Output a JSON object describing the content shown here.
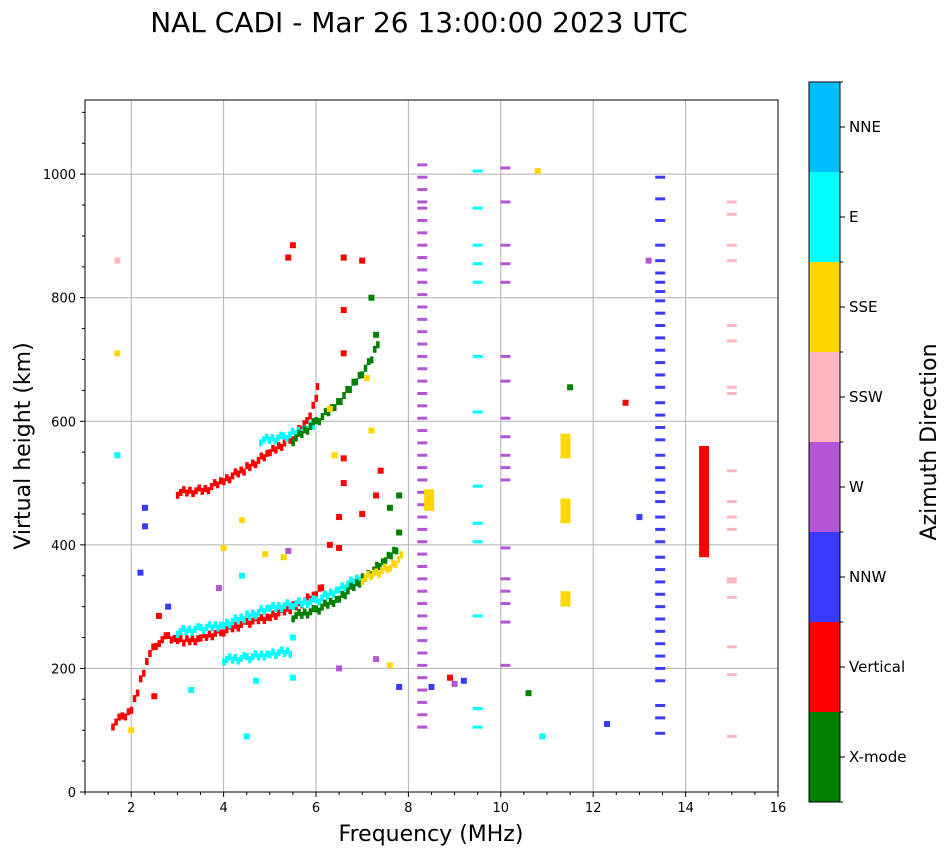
{
  "chart_data": {
    "type": "scatter",
    "title": "NAL CADI - Mar 26 13:00:00 2023 UTC",
    "xlabel": "Frequency (MHz)",
    "ylabel": "Virtual height (km)",
    "xlim": [
      1,
      16
    ],
    "ylim": [
      0,
      1120
    ],
    "xticks": [
      2,
      4,
      6,
      8,
      10,
      12,
      14,
      16
    ],
    "yticks": [
      0,
      200,
      400,
      600,
      800,
      1000
    ],
    "grid": true,
    "colorbar": {
      "label": "Azimuth Direction",
      "categories": [
        {
          "name": "X-mode",
          "color": "#008000"
        },
        {
          "name": "Vertical",
          "color": "#ff0000"
        },
        {
          "name": "NNW",
          "color": "#3a3aff"
        },
        {
          "name": "W",
          "color": "#b455d6"
        },
        {
          "name": "SSW",
          "color": "#ffb6c1"
        },
        {
          "name": "SSE",
          "color": "#ffd700"
        },
        {
          "name": "E",
          "color": "#00ffff"
        },
        {
          "name": "NNE",
          "color": "#00bfff"
        }
      ]
    },
    "traces": [
      {
        "name": "lower-trace-red",
        "dir": "Vertical",
        "points": [
          [
            1.6,
            110
          ],
          [
            1.8,
            122
          ],
          [
            2.0,
            135
          ],
          [
            2.2,
            180
          ],
          [
            2.4,
            225
          ],
          [
            2.6,
            245
          ],
          [
            2.8,
            252
          ],
          [
            3.0,
            248
          ],
          [
            3.2,
            245
          ],
          [
            3.5,
            250
          ],
          [
            4.0,
            262
          ],
          [
            4.5,
            275
          ],
          [
            5.0,
            285
          ],
          [
            5.5,
            300
          ],
          [
            6.0,
            320
          ],
          [
            6.2,
            340
          ]
        ]
      },
      {
        "name": "lower-trace-cyan",
        "dir": "E",
        "points": [
          [
            3.0,
            260
          ],
          [
            3.5,
            265
          ],
          [
            4.0,
            272
          ],
          [
            4.5,
            285
          ],
          [
            5.0,
            298
          ],
          [
            5.5,
            305
          ],
          [
            6.0,
            310
          ],
          [
            6.5,
            330
          ],
          [
            7.0,
            350
          ]
        ]
      },
      {
        "name": "lower-trace-xmode",
        "dir": "X-mode",
        "points": [
          [
            5.5,
            285
          ],
          [
            6.0,
            295
          ],
          [
            6.5,
            315
          ],
          [
            7.0,
            345
          ],
          [
            7.5,
            375
          ],
          [
            7.8,
            400
          ]
        ]
      },
      {
        "name": "lower-trace-sse",
        "dir": "SSE",
        "points": [
          [
            7.0,
            345
          ],
          [
            7.3,
            355
          ],
          [
            7.6,
            365
          ],
          [
            7.9,
            385
          ]
        ]
      },
      {
        "name": "upper-trace-red",
        "dir": "Vertical",
        "points": [
          [
            3.0,
            485
          ],
          [
            3.6,
            490
          ],
          [
            4.0,
            505
          ],
          [
            4.5,
            525
          ],
          [
            5.0,
            550
          ],
          [
            5.5,
            575
          ],
          [
            5.8,
            600
          ],
          [
            6.0,
            640
          ],
          [
            6.05,
            670
          ]
        ]
      },
      {
        "name": "upper-trace-cyan",
        "dir": "E",
        "points": [
          [
            4.8,
            570
          ],
          [
            5.3,
            575
          ],
          [
            5.8,
            590
          ],
          [
            6.0,
            600
          ]
        ]
      },
      {
        "name": "upper-trace-xmode",
        "dir": "X-mode",
        "points": [
          [
            5.5,
            570
          ],
          [
            6.0,
            600
          ],
          [
            6.4,
            625
          ],
          [
            6.8,
            660
          ],
          [
            7.2,
            700
          ],
          [
            7.4,
            740
          ]
        ]
      },
      {
        "name": "e-layer-cyan",
        "dir": "E",
        "points": [
          [
            4.0,
            215
          ],
          [
            4.5,
            218
          ],
          [
            5.0,
            225
          ],
          [
            5.5,
            228
          ]
        ]
      }
    ],
    "columns": [
      {
        "freq": 8.3,
        "dir": "W",
        "heights": [
          1015,
          995,
          975,
          955,
          945,
          925,
          905,
          885,
          865,
          845,
          825,
          805,
          785,
          765,
          745,
          725,
          705,
          685,
          665,
          645,
          625,
          605,
          585,
          565,
          545,
          525,
          505,
          485,
          465,
          445,
          425,
          405,
          385,
          365,
          345,
          325,
          305,
          285,
          265,
          245,
          225,
          205,
          185,
          165,
          145,
          125,
          105
        ]
      },
      {
        "freq": 13.45,
        "dir": "NNW",
        "heights": [
          995,
          960,
          925,
          885,
          860,
          840,
          825,
          810,
          795,
          775,
          755,
          735,
          715,
          695,
          675,
          655,
          630,
          610,
          590,
          570,
          545,
          525,
          505,
          485,
          470,
          445,
          425,
          405,
          380,
          360,
          340,
          320,
          300,
          280,
          260,
          240,
          220,
          200,
          180,
          140,
          120,
          95
        ]
      },
      {
        "freq": 9.5,
        "dir": "E",
        "heights": [
          1005,
          945,
          885,
          855,
          825,
          705,
          615,
          495,
          435,
          405,
          285,
          135,
          105
        ]
      },
      {
        "freq": 10.1,
        "dir": "W",
        "heights": [
          1010,
          955,
          885,
          855,
          825,
          705,
          665,
          605,
          575,
          545,
          525,
          505,
          395,
          345,
          325,
          305,
          275,
          205
        ]
      },
      {
        "freq": 15.0,
        "dir": "SSW",
        "heights": [
          955,
          935,
          885,
          860,
          755,
          730,
          655,
          645,
          520,
          470,
          445,
          425,
          345,
          340,
          315,
          235,
          190,
          90
        ]
      }
    ],
    "sporadic": [
      {
        "freq": 14.4,
        "h1": 380,
        "h2": 560,
        "dir": "Vertical"
      },
      {
        "freq": 11.4,
        "h1": 540,
        "h2": 580,
        "dir": "SSE"
      },
      {
        "freq": 11.4,
        "h1": 435,
        "h2": 475,
        "dir": "SSE"
      },
      {
        "freq": 11.4,
        "h1": 300,
        "h2": 325,
        "dir": "SSE"
      },
      {
        "freq": 8.45,
        "h1": 455,
        "h2": 490,
        "dir": "SSE"
      }
    ],
    "scatter_points": [
      {
        "freq": 9.2,
        "h": 180,
        "dir": "NNW"
      },
      {
        "freq": 9.0,
        "h": 175,
        "dir": "W"
      },
      {
        "freq": 8.9,
        "h": 185,
        "dir": "Vertical"
      },
      {
        "freq": 8.5,
        "h": 170,
        "dir": "NNW"
      },
      {
        "freq": 12.7,
        "h": 630,
        "dir": "Vertical"
      },
      {
        "freq": 12.3,
        "h": 110,
        "dir": "NNW"
      },
      {
        "freq": 13.0,
        "h": 445,
        "dir": "NNW"
      },
      {
        "freq": 13.2,
        "h": 860,
        "dir": "W"
      },
      {
        "freq": 11.5,
        "h": 655,
        "dir": "X-mode"
      },
      {
        "freq": 10.8,
        "h": 1005,
        "dir": "SSE"
      },
      {
        "freq": 10.6,
        "h": 160,
        "dir": "X-mode"
      },
      {
        "freq": 10.9,
        "h": 90,
        "dir": "E"
      },
      {
        "freq": 5.5,
        "h": 885,
        "dir": "Vertical"
      },
      {
        "freq": 6.6,
        "h": 865,
        "dir": "Vertical"
      },
      {
        "freq": 7.0,
        "h": 860,
        "dir": "Vertical"
      },
      {
        "freq": 5.4,
        "h": 865,
        "dir": "Vertical"
      },
      {
        "freq": 6.6,
        "h": 780,
        "dir": "Vertical"
      },
      {
        "freq": 6.6,
        "h": 710,
        "dir": "Vertical"
      },
      {
        "freq": 6.3,
        "h": 620,
        "dir": "SSE"
      },
      {
        "freq": 6.4,
        "h": 545,
        "dir": "SSE"
      },
      {
        "freq": 7.2,
        "h": 585,
        "dir": "SSE"
      },
      {
        "freq": 7.1,
        "h": 670,
        "dir": "SSE"
      },
      {
        "freq": 7.2,
        "h": 800,
        "dir": "X-mode"
      },
      {
        "freq": 7.3,
        "h": 740,
        "dir": "X-mode"
      },
      {
        "freq": 6.3,
        "h": 400,
        "dir": "Vertical"
      },
      {
        "freq": 6.5,
        "h": 395,
        "dir": "Vertical"
      },
      {
        "freq": 6.5,
        "h": 445,
        "dir": "Vertical"
      },
      {
        "freq": 6.6,
        "h": 500,
        "dir": "Vertical"
      },
      {
        "freq": 6.6,
        "h": 540,
        "dir": "Vertical"
      },
      {
        "freq": 7.0,
        "h": 450,
        "dir": "Vertical"
      },
      {
        "freq": 7.3,
        "h": 480,
        "dir": "Vertical"
      },
      {
        "freq": 7.4,
        "h": 520,
        "dir": "Vertical"
      },
      {
        "freq": 7.8,
        "h": 480,
        "dir": "X-mode"
      },
      {
        "freq": 7.6,
        "h": 460,
        "dir": "X-mode"
      },
      {
        "freq": 7.8,
        "h": 420,
        "dir": "X-mode"
      },
      {
        "freq": 4.4,
        "h": 440,
        "dir": "SSE"
      },
      {
        "freq": 4.9,
        "h": 385,
        "dir": "SSE"
      },
      {
        "freq": 5.3,
        "h": 380,
        "dir": "SSE"
      },
      {
        "freq": 4.4,
        "h": 350,
        "dir": "E"
      },
      {
        "freq": 4.0,
        "h": 395,
        "dir": "SSE"
      },
      {
        "freq": 5.4,
        "h": 390,
        "dir": "W"
      },
      {
        "freq": 3.9,
        "h": 330,
        "dir": "W"
      },
      {
        "freq": 2.6,
        "h": 285,
        "dir": "Vertical"
      },
      {
        "freq": 2.8,
        "h": 300,
        "dir": "NNW"
      },
      {
        "freq": 2.3,
        "h": 460,
        "dir": "NNW"
      },
      {
        "freq": 2.2,
        "h": 355,
        "dir": "NNW"
      },
      {
        "freq": 2.3,
        "h": 430,
        "dir": "NNW"
      },
      {
        "freq": 1.7,
        "h": 545,
        "dir": "E"
      },
      {
        "freq": 1.7,
        "h": 860,
        "dir": "SSW"
      },
      {
        "freq": 1.7,
        "h": 710,
        "dir": "SSE"
      },
      {
        "freq": 3.3,
        "h": 165,
        "dir": "E"
      },
      {
        "freq": 4.5,
        "h": 90,
        "dir": "E"
      },
      {
        "freq": 4.7,
        "h": 180,
        "dir": "E"
      },
      {
        "freq": 5.5,
        "h": 185,
        "dir": "E"
      },
      {
        "freq": 6.5,
        "h": 200,
        "dir": "W"
      },
      {
        "freq": 7.3,
        "h": 215,
        "dir": "W"
      },
      {
        "freq": 7.6,
        "h": 205,
        "dir": "SSE"
      },
      {
        "freq": 7.8,
        "h": 170,
        "dir": "NNW"
      },
      {
        "freq": 5.5,
        "h": 250,
        "dir": "E"
      },
      {
        "freq": 2.5,
        "h": 155,
        "dir": "Vertical"
      },
      {
        "freq": 2.0,
        "h": 100,
        "dir": "SSE"
      }
    ]
  }
}
